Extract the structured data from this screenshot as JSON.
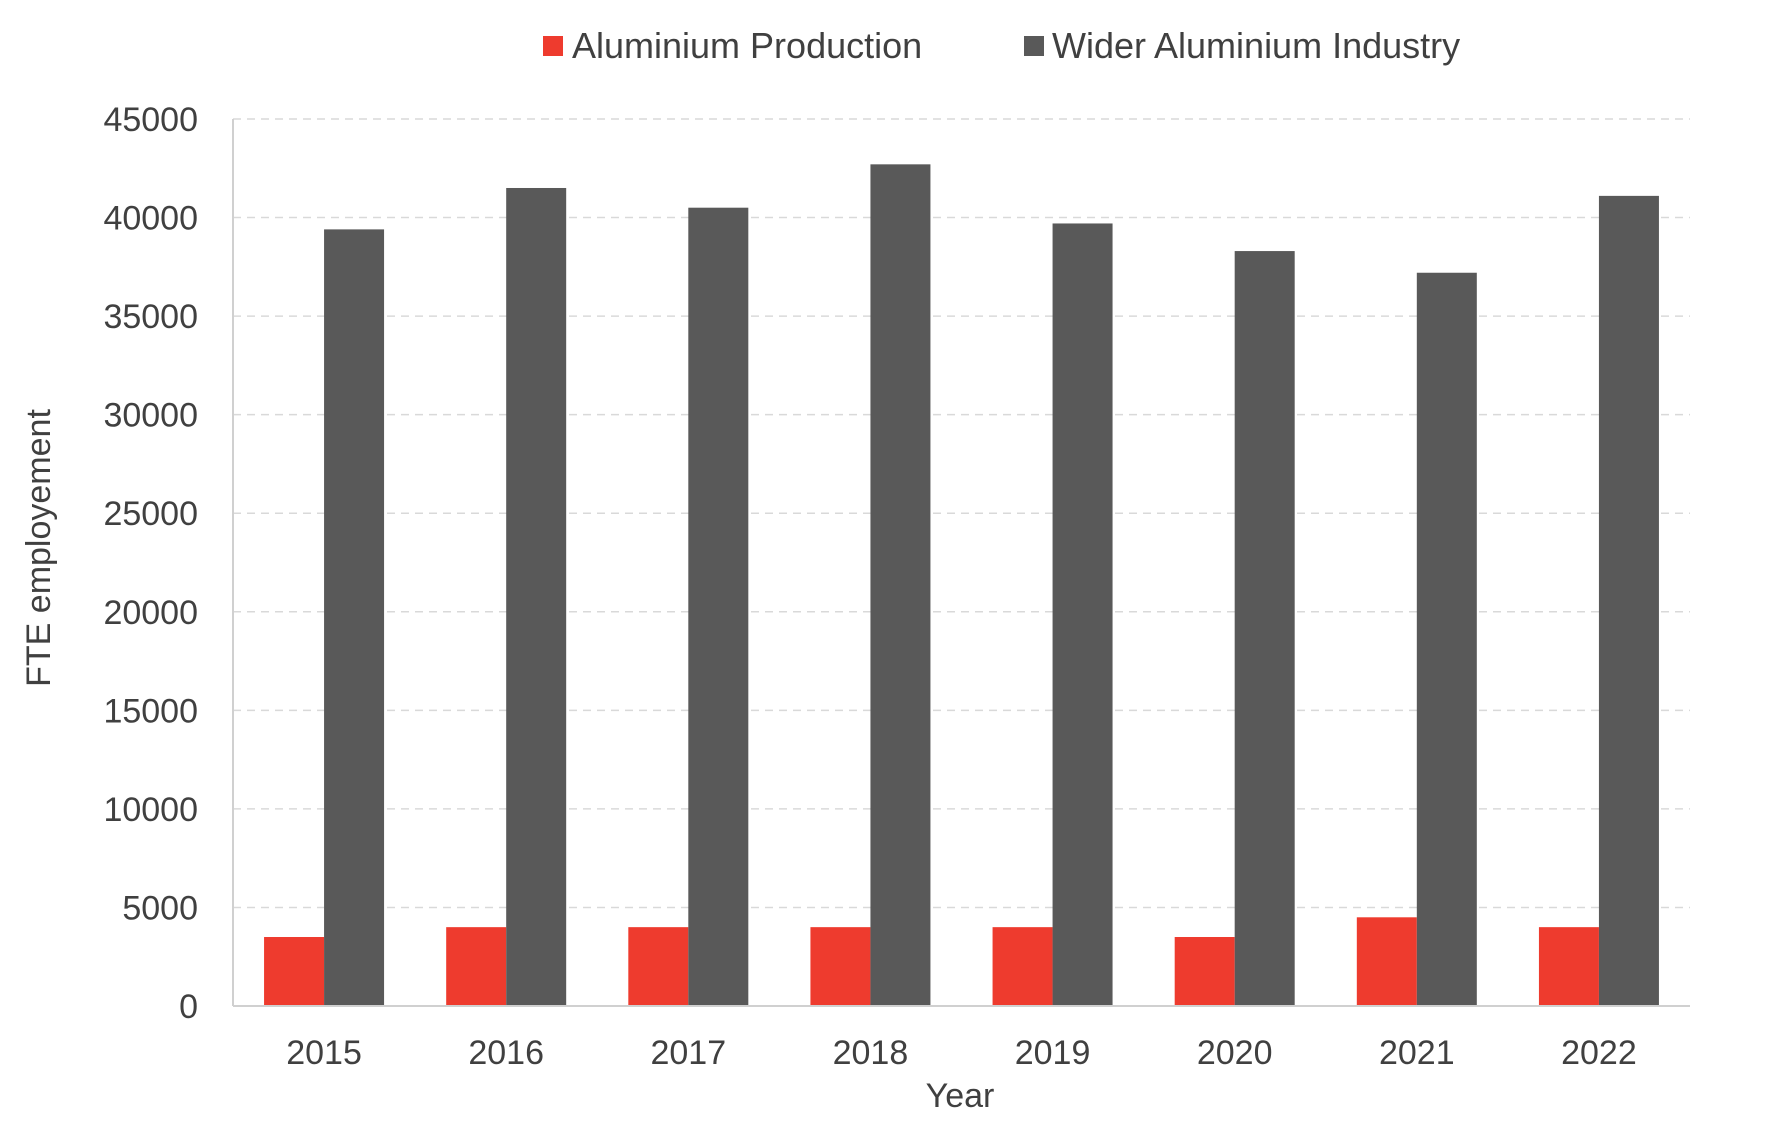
{
  "chart_data": {
    "type": "bar",
    "title": "",
    "xlabel": "Year",
    "ylabel": "FTE employement",
    "ylim": [
      0,
      45000
    ],
    "yticks": [
      0,
      5000,
      10000,
      15000,
      20000,
      25000,
      30000,
      35000,
      40000,
      45000
    ],
    "grid": true,
    "legend_position": "top-center",
    "categories": [
      "2015",
      "2016",
      "2017",
      "2018",
      "2019",
      "2020",
      "2021",
      "2022"
    ],
    "series": [
      {
        "name": "Aluminium Production",
        "color": "#ee3b2e",
        "values": [
          3500,
          4000,
          4000,
          4000,
          4000,
          3500,
          4500,
          4000
        ]
      },
      {
        "name": "Wider Aluminium Industry",
        "color": "#595959",
        "values": [
          39400,
          41500,
          40500,
          42700,
          39700,
          38300,
          37200,
          41100
        ]
      }
    ]
  }
}
